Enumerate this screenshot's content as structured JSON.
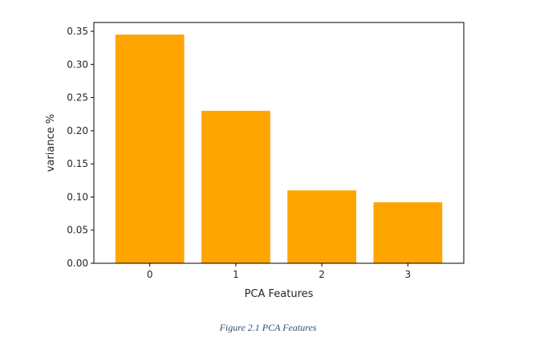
{
  "chart_data": {
    "type": "bar",
    "categories": [
      "0",
      "1",
      "2",
      "3"
    ],
    "values": [
      0.345,
      0.23,
      0.11,
      0.092
    ],
    "xlabel": "PCA Features",
    "ylabel": "variance %",
    "ylim": [
      0,
      0.35
    ],
    "yticks": [
      "0.00",
      "0.05",
      "0.10",
      "0.15",
      "0.20",
      "0.25",
      "0.30",
      "0.35"
    ],
    "bar_color": "#FFA500",
    "grid": false
  },
  "caption": "Figure 2.1 PCA Features"
}
